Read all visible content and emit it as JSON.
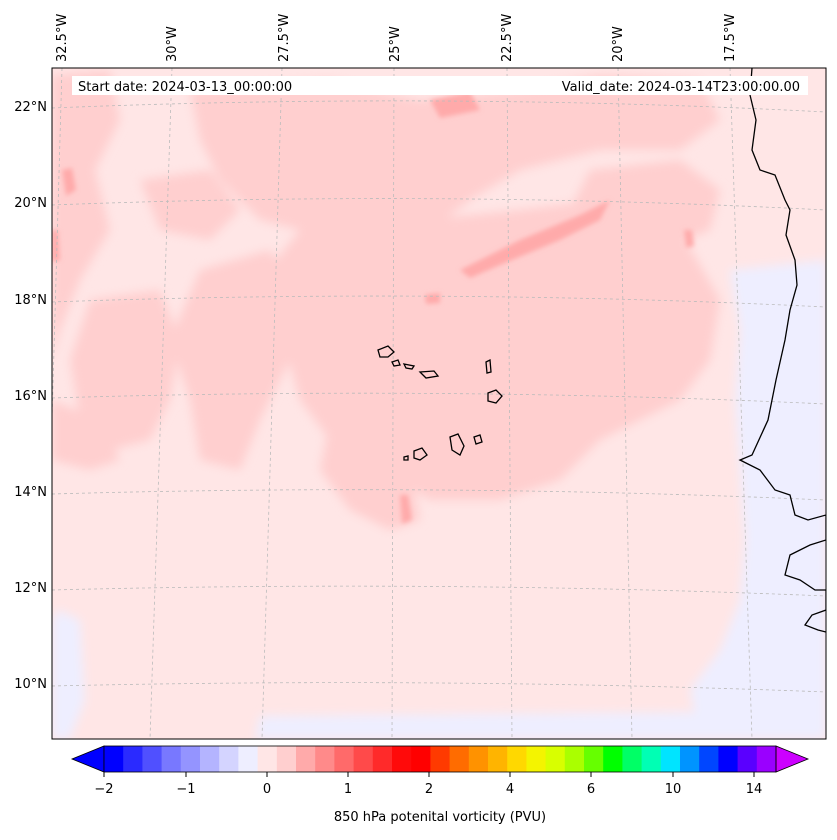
{
  "header": {
    "start_date": "Start date: 2024-03-13_00:00:00",
    "valid_date": "Valid_date: 2024-03-14T23:00:00.00"
  },
  "map": {
    "projection": "lambert-conformal",
    "region": "Cape Verde and West African coast",
    "lon_labels": [
      "32.5°W",
      "30°W",
      "27.5°W",
      "25°W",
      "22.5°W",
      "20°W",
      "17.5°W"
    ],
    "lat_labels": [
      "22°N",
      "20°N",
      "18°N",
      "16°N",
      "14°N",
      "12°N",
      "10°N"
    ],
    "field_colors": {
      "background_field": "#ffe6e6",
      "weak_positive": "#ffcfcf",
      "moderate_positive": "#ffaaaa",
      "negative": "#eeeeff",
      "coastline": "#000000",
      "gridline": "#bbbbbb"
    }
  },
  "colorbar": {
    "label": "850 hPa potenital vorticity (PVU)",
    "tick_labels": [
      "−2",
      "−1",
      "0",
      "1",
      "2",
      "4",
      "6",
      "10",
      "14"
    ],
    "colors": [
      "#0000ff",
      "#2a2aff",
      "#5050ff",
      "#7878ff",
      "#9494ff",
      "#b4b4ff",
      "#d4d4ff",
      "#eeeeff",
      "#ffe6e6",
      "#ffcfcf",
      "#ffaaaa",
      "#ff8a8a",
      "#ff6a6a",
      "#ff4a4a",
      "#ff2a2a",
      "#ff0a0a",
      "#ff0000",
      "#ff3a00",
      "#ff6c00",
      "#ff9200",
      "#ffb400",
      "#ffd800",
      "#f4f400",
      "#d8ff00",
      "#aaff00",
      "#66ff00",
      "#00ff00",
      "#00ff66",
      "#00ffb4",
      "#00e4ff",
      "#0094ff",
      "#0046ff",
      "#0000ff",
      "#5a00ff",
      "#9a00ff"
    ],
    "extend_low_color": "#0000ff",
    "extend_high_color": "#cc00ff"
  }
}
